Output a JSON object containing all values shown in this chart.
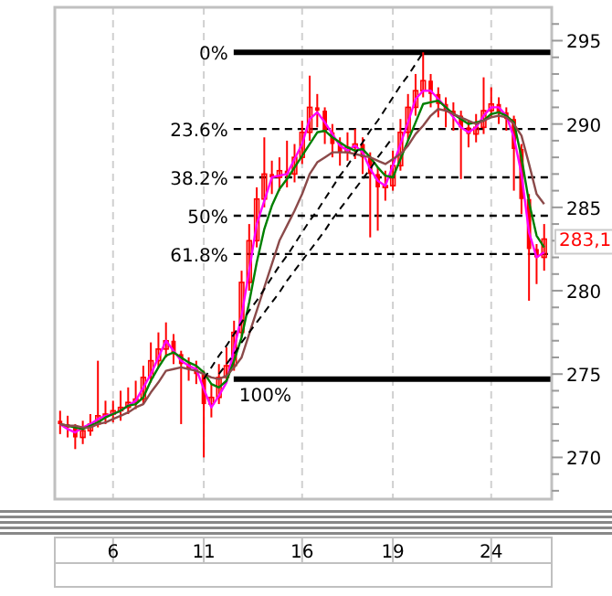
{
  "chart_data": {
    "type": "candlestick",
    "color": "#ff0000",
    "categories": [
      null,
      null,
      null,
      null,
      null,
      null,
      null,
      "6",
      null,
      null,
      null,
      null,
      null,
      null,
      null,
      null,
      null,
      null,
      null,
      "11",
      null,
      null,
      null,
      null,
      null,
      null,
      null,
      null,
      null,
      null,
      null,
      null,
      "16",
      null,
      null,
      null,
      null,
      null,
      null,
      null,
      null,
      null,
      null,
      null,
      "19",
      null,
      null,
      null,
      null,
      null,
      null,
      null,
      null,
      null,
      null,
      null,
      null,
      "24",
      null,
      null,
      null,
      null,
      null,
      null,
      null
    ],
    "ohlc": [
      [
        272.2,
        272.8,
        271.4,
        272.0
      ],
      [
        272.0,
        272.5,
        271.2,
        271.8
      ],
      [
        271.8,
        272.0,
        270.5,
        271.2
      ],
      [
        271.2,
        272.2,
        270.8,
        271.6
      ],
      [
        271.6,
        272.6,
        271.3,
        272.0
      ],
      [
        272.0,
        275.8,
        271.8,
        272.5
      ],
      [
        272.5,
        273.4,
        272.0,
        272.6
      ],
      [
        272.6,
        273.4,
        272.1,
        272.8
      ],
      [
        272.8,
        274.0,
        272.2,
        273.0
      ],
      [
        273.0,
        274.2,
        272.6,
        273.3
      ],
      [
        273.3,
        274.6,
        272.9,
        273.5
      ],
      [
        273.5,
        275.5,
        273.2,
        274.8
      ],
      [
        274.8,
        276.9,
        274.5,
        275.8
      ],
      [
        275.8,
        277.5,
        275.4,
        276.5
      ],
      [
        276.5,
        278.1,
        276.0,
        277.0
      ],
      [
        277.0,
        277.4,
        275.6,
        276.2
      ],
      [
        276.2,
        276.4,
        272.0,
        275.6
      ],
      [
        275.6,
        276.0,
        274.6,
        275.3
      ],
      [
        275.3,
        275.8,
        274.4,
        275.0
      ],
      [
        275.0,
        275.2,
        270.0,
        273.2
      ],
      [
        273.2,
        274.4,
        272.4,
        273.6
      ],
      [
        273.6,
        275.6,
        273.2,
        274.8
      ],
      [
        274.8,
        276.6,
        274.5,
        275.5
      ],
      [
        275.5,
        278.2,
        275.2,
        277.5
      ],
      [
        277.5,
        281.2,
        277.2,
        280.5
      ],
      [
        280.5,
        284.0,
        280.0,
        283.0
      ],
      [
        283.0,
        286.2,
        282.6,
        285.5
      ],
      [
        285.5,
        289.2,
        285.0,
        287.0
      ],
      [
        287.0,
        287.8,
        285.8,
        286.8
      ],
      [
        286.8,
        288.0,
        286.0,
        287.2
      ],
      [
        287.2,
        289.0,
        286.2,
        287.0
      ],
      [
        287.0,
        288.8,
        286.5,
        288.0
      ],
      [
        288.0,
        290.2,
        287.6,
        289.5
      ],
      [
        289.5,
        292.9,
        289.0,
        291.0
      ],
      [
        291.0,
        291.8,
        289.8,
        290.8
      ],
      [
        290.8,
        291.0,
        288.8,
        289.5
      ],
      [
        289.5,
        290.0,
        288.0,
        288.8
      ],
      [
        288.8,
        289.2,
        287.5,
        288.3
      ],
      [
        288.3,
        289.5,
        287.8,
        288.6
      ],
      [
        288.6,
        289.7,
        287.9,
        288.8
      ],
      [
        288.8,
        289.2,
        287.0,
        288.0
      ],
      [
        288.0,
        288.3,
        283.2,
        287.0
      ],
      [
        287.0,
        287.4,
        283.6,
        286.2
      ],
      [
        286.2,
        287.2,
        285.4,
        286.3
      ],
      [
        286.3,
        288.4,
        286.0,
        287.5
      ],
      [
        287.5,
        290.3,
        287.2,
        289.5
      ],
      [
        289.5,
        291.8,
        289.0,
        291.0
      ],
      [
        291.0,
        293.0,
        290.5,
        292.0
      ],
      [
        292.0,
        294.3,
        291.6,
        292.6
      ],
      [
        292.6,
        293.0,
        291.0,
        291.8
      ],
      [
        291.8,
        292.2,
        290.4,
        291.2
      ],
      [
        291.2,
        291.6,
        289.8,
        290.8
      ],
      [
        290.8,
        291.3,
        289.6,
        290.5
      ],
      [
        290.5,
        290.8,
        286.7,
        289.8
      ],
      [
        289.8,
        290.2,
        288.6,
        289.4
      ],
      [
        289.4,
        290.6,
        288.9,
        289.8
      ],
      [
        289.8,
        292.8,
        289.4,
        290.8
      ],
      [
        290.8,
        292.2,
        290.4,
        291.2
      ],
      [
        291.2,
        291.6,
        290.0,
        290.7
      ],
      [
        290.7,
        291.0,
        289.6,
        290.3
      ],
      [
        290.3,
        290.5,
        286.0,
        288.5
      ],
      [
        288.5,
        288.8,
        284.6,
        285.5
      ],
      [
        285.5,
        285.8,
        279.4,
        282.5
      ],
      [
        282.5,
        282.8,
        280.4,
        282.0
      ],
      [
        282.0,
        284.0,
        281.2,
        283.1
      ]
    ],
    "series": [
      {
        "type": "line",
        "color": "#ff00ff",
        "values": [
          272.0,
          271.7,
          271.5,
          271.8,
          272.0,
          272.3,
          272.5,
          272.6,
          272.8,
          273.1,
          273.4,
          274.2,
          275.0,
          276.0,
          277.0,
          276.4,
          275.8,
          275.5,
          275.3,
          274.1,
          273.0,
          273.7,
          274.5,
          276.5,
          278.5,
          281.2,
          284.0,
          285.4,
          286.8,
          286.9,
          287.0,
          287.9,
          288.8,
          290.3,
          290.7,
          290.1,
          289.4,
          288.7,
          288.4,
          288.7,
          288.3,
          287.3,
          286.6,
          286.3,
          287.5,
          288.8,
          290.1,
          291.5,
          292.0,
          292.0,
          291.5,
          291.0,
          290.4,
          289.8,
          289.5,
          289.8,
          290.5,
          291.0,
          291.0,
          290.5,
          289.2,
          287.0,
          283.5,
          282.0,
          282.3
        ]
      },
      {
        "type": "line",
        "color": "#008000",
        "values": [
          272.0,
          271.9,
          271.8,
          271.7,
          271.9,
          272.1,
          272.4,
          272.6,
          272.8,
          273.1,
          273.2,
          273.6,
          274.6,
          275.4,
          276.1,
          276.3,
          276.0,
          275.7,
          275.5,
          275.1,
          274.4,
          274.2,
          274.6,
          275.8,
          277.2,
          279.3,
          281.7,
          283.7,
          285.1,
          286.1,
          286.7,
          287.4,
          288.1,
          288.8,
          289.5,
          289.6,
          289.2,
          288.9,
          288.6,
          288.4,
          288.5,
          288.0,
          287.4,
          286.9,
          286.8,
          287.9,
          289.0,
          290.1,
          291.2,
          291.3,
          291.4,
          291.0,
          290.6,
          290.3,
          290.0,
          290.1,
          290.2,
          290.6,
          290.7,
          290.5,
          290.1,
          288.0,
          285.3,
          283.3,
          282.6
        ]
      },
      {
        "type": "line",
        "color": "#8b4a4a",
        "values": [
          272.0,
          271.9,
          271.9,
          271.8,
          271.8,
          272.0,
          272.1,
          272.3,
          272.5,
          272.7,
          273.0,
          273.2,
          273.9,
          274.5,
          275.2,
          275.3,
          275.4,
          275.3,
          275.2,
          275.0,
          274.8,
          274.7,
          274.9,
          275.4,
          276.0,
          277.4,
          278.8,
          280.2,
          281.6,
          283.0,
          283.9,
          284.8,
          285.8,
          287.0,
          287.7,
          288.0,
          288.3,
          288.3,
          288.3,
          288.2,
          288.1,
          288.0,
          287.8,
          287.6,
          287.9,
          288.2,
          288.7,
          289.4,
          289.9,
          290.5,
          290.9,
          290.8,
          290.6,
          290.4,
          290.2,
          290.0,
          290.2,
          290.4,
          290.5,
          290.4,
          290.0,
          289.3,
          287.6,
          285.8,
          285.2
        ]
      },
      {
        "type": "line",
        "color": "#000000",
        "line_style": "dashed",
        "values": [
          null,
          null,
          null,
          null,
          null,
          null,
          null,
          null,
          null,
          null,
          null,
          null,
          null,
          null,
          null,
          null,
          null,
          null,
          null,
          274.7,
          275.4,
          276.1,
          276.7,
          277.4,
          278.1,
          278.8,
          279.4,
          280.1,
          280.8,
          281.5,
          282.1,
          282.8,
          283.5,
          284.2,
          284.8,
          285.5,
          286.2,
          286.9,
          287.5,
          288.2,
          288.9,
          289.6,
          290.2,
          290.9,
          291.6,
          292.3,
          292.9,
          293.6,
          294.3,
          null,
          null,
          null,
          null,
          null,
          null,
          null,
          null,
          null,
          null,
          null,
          null,
          null,
          null,
          null,
          null
        ]
      },
      {
        "type": "line",
        "color": "#000000",
        "line_style": "dashed",
        "values": [
          null,
          null,
          null,
          null,
          null,
          null,
          null,
          null,
          null,
          null,
          null,
          null,
          null,
          null,
          null,
          null,
          null,
          null,
          null,
          null,
          null,
          275.0,
          275.6,
          276.2,
          276.9,
          277.5,
          278.1,
          278.7,
          279.3,
          279.9,
          280.6,
          281.2,
          281.8,
          282.4,
          283.0,
          283.6,
          284.3,
          284.9,
          285.5,
          286.1,
          286.7,
          287.3,
          288.0,
          288.6,
          289.2,
          null,
          null,
          null,
          null,
          null,
          null,
          null,
          null,
          null,
          null,
          null,
          null,
          null,
          null,
          null,
          null,
          null,
          null,
          null,
          null
        ]
      }
    ],
    "ylim": [
      267.5,
      297.0
    ],
    "yticks": [
      {
        "value": 268,
        "label": null
      },
      {
        "value": 269,
        "label": null
      },
      270,
      {
        "value": 271,
        "label": null
      },
      {
        "value": 272,
        "label": null
      },
      {
        "value": 273,
        "label": null
      },
      {
        "value": 274,
        "label": null
      },
      275,
      {
        "value": 276,
        "label": null
      },
      {
        "value": 277,
        "label": null
      },
      {
        "value": 278,
        "label": null
      },
      {
        "value": 279,
        "label": null
      },
      280,
      {
        "value": 281,
        "label": null
      },
      {
        "value": 282,
        "label": null
      },
      {
        "value": 283,
        "label": null
      },
      {
        "value": 284,
        "label": null
      },
      285,
      {
        "value": 286,
        "label": null
      },
      {
        "value": 287,
        "label": null
      },
      {
        "value": 288,
        "label": null
      },
      {
        "value": 289,
        "label": null
      },
      290,
      {
        "value": 291,
        "label": null
      },
      {
        "value": 292,
        "label": null
      },
      {
        "value": 293,
        "label": null
      },
      {
        "value": 294,
        "label": null
      },
      295,
      {
        "value": 296,
        "label": null
      }
    ],
    "grid": "x",
    "ref_lines": [
      {
        "axis": "y",
        "value": 294.3,
        "line_style": "solid",
        "color": "#000000"
      },
      {
        "axis": "y",
        "value": 289.7,
        "line_style": "dashed",
        "color": "#000000"
      },
      {
        "axis": "y",
        "value": 286.8,
        "line_style": "dashed",
        "color": "#000000"
      },
      {
        "axis": "y",
        "value": 284.5,
        "line_style": "dashed",
        "color": "#000000"
      },
      {
        "axis": "y",
        "value": 282.2,
        "line_style": "dashed",
        "color": "#000000"
      },
      {
        "axis": "y",
        "value": 274.7,
        "line_style": "solid",
        "color": "#000000"
      }
    ],
    "annotations": [
      "0%",
      "23.6%",
      "38.2%",
      "50%",
      "61.8%",
      "100%",
      {
        "text": "283,1",
        "y": 283.1
      }
    ]
  }
}
